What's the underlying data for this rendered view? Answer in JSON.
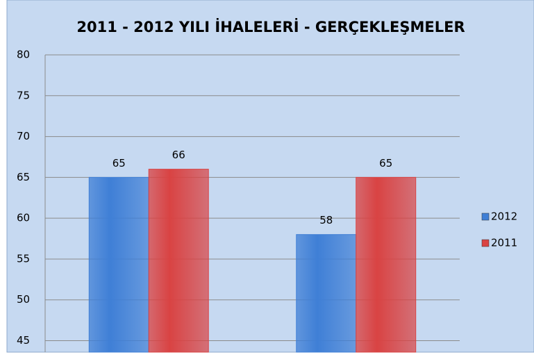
{
  "chart_data": {
    "type": "bar",
    "title": "2011 - 2012 YILI İHALELERİ - GERÇEKLEŞMELER",
    "categories": [
      null,
      null
    ],
    "series": [
      {
        "name": "2012",
        "color": "#3f7fd6",
        "values": [
          65,
          58
        ]
      },
      {
        "name": "2011",
        "color": "#d94343",
        "values": [
          66,
          65
        ]
      }
    ],
    "ylim": [
      43.6,
      80
    ],
    "yticks": [
      45,
      50,
      55,
      60,
      65,
      70,
      75,
      80
    ],
    "grid": true,
    "legend": "right"
  }
}
